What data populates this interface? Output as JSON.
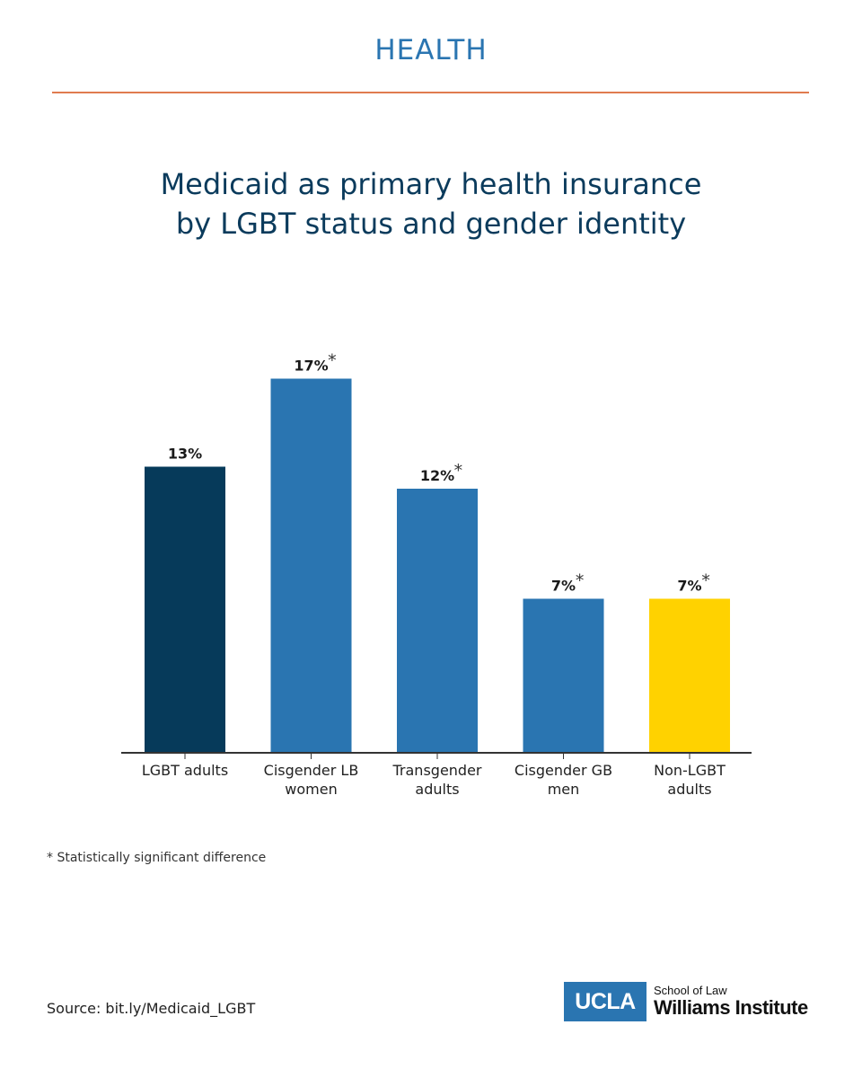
{
  "header": {
    "section": "HEALTH"
  },
  "colors": {
    "header_text": "#2a75b1",
    "header_rule": "#e07b4f",
    "title_text": "#0b3b5c",
    "axis": "#333333"
  },
  "chart_data": {
    "type": "bar",
    "title_lines": [
      "Medicaid as primary health insurance",
      "by LGBT status and gender identity"
    ],
    "categories": [
      [
        "LGBT adults"
      ],
      [
        "Cisgender LB",
        "women"
      ],
      [
        "Transgender",
        "adults"
      ],
      [
        "Cisgender GB",
        "men"
      ],
      [
        "Non-LGBT",
        "adults"
      ]
    ],
    "values": [
      13,
      17,
      12,
      7,
      7
    ],
    "value_labels": [
      "13%",
      "17%",
      "12%",
      "7%",
      "7%"
    ],
    "significant": [
      false,
      true,
      true,
      true,
      true
    ],
    "significance_marker": "*",
    "bar_colors": [
      "#063a5a",
      "#2a75b1",
      "#2a75b1",
      "#2a75b1",
      "#ffd200"
    ],
    "ylim": [
      0,
      20
    ],
    "xlabel": "",
    "ylabel": "",
    "grid": false
  },
  "footnote": "* Statistically significant difference",
  "source": "Source: bit.ly/Medicaid_LGBT",
  "logo": {
    "mark": "UCLA",
    "line1": "School of Law",
    "line2": "Williams Institute"
  }
}
